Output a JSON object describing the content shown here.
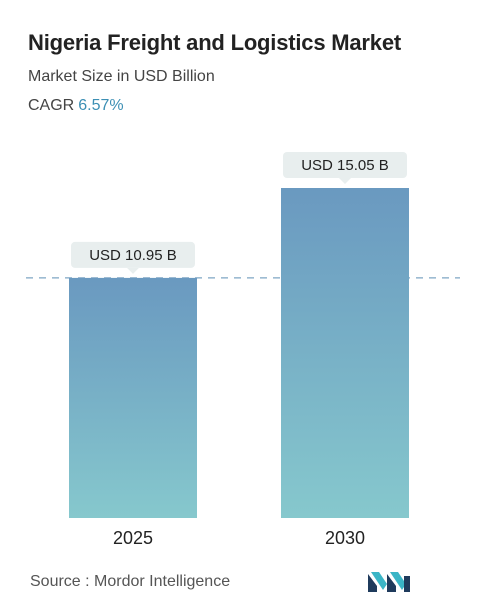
{
  "header": {
    "title": "Nigeria Freight and Logistics Market",
    "subtitle": "Market Size in USD Billion",
    "cagr_label": "CAGR",
    "cagr_value": "6.57%"
  },
  "chart_data": {
    "type": "bar",
    "categories": [
      "2025",
      "2030"
    ],
    "values": [
      10.95,
      15.05
    ],
    "value_labels": [
      "USD 10.95 B",
      "USD 15.05 B"
    ],
    "title": "Nigeria Freight and Logistics Market",
    "ylabel": "Market Size in USD Billion",
    "ylim": [
      0,
      15.05
    ],
    "grid": false,
    "reference_line": "dashed line at first bar value"
  },
  "footer": {
    "source": "Source :  Mordor Intelligence",
    "logo_icon": "mordor-intelligence-logo-icon"
  },
  "colors": {
    "bar_top": "#6a99c0",
    "bar_bottom": "#86c8cd",
    "label_bg": "#e8eeee",
    "dashed_line": "#7ea6c4",
    "cagr_value": "#3c8fb4",
    "logo_dark": "#1f3b5c",
    "logo_teal": "#3ab5c6"
  }
}
